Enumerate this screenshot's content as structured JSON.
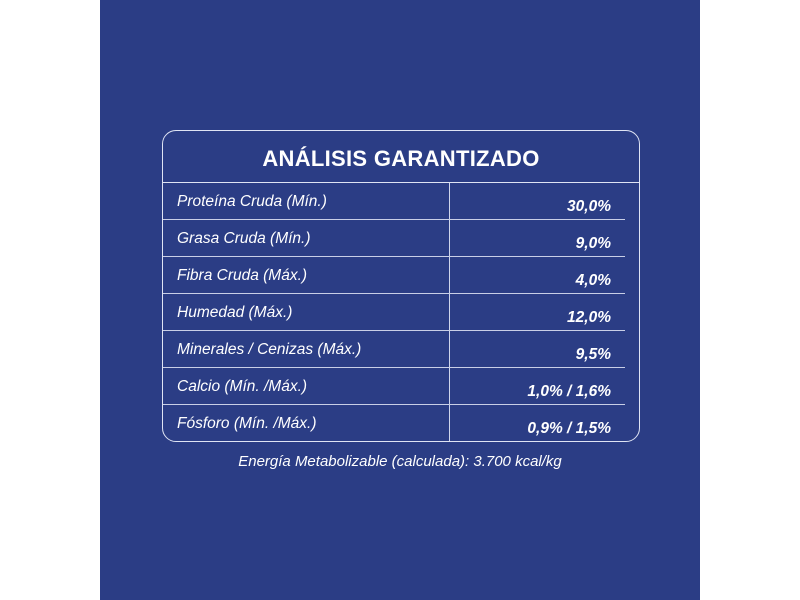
{
  "table": {
    "title": "ANÁLISIS GARANTIZADO",
    "rows": [
      {
        "label": "Proteína Cruda (Mín.)",
        "value": "30,0%"
      },
      {
        "label": "Grasa Cruda (Mín.)",
        "value": "9,0%"
      },
      {
        "label": "Fibra Cruda (Máx.)",
        "value": "4,0%"
      },
      {
        "label": "Humedad (Máx.)",
        "value": "12,0%"
      },
      {
        "label": "Minerales / Cenizas (Máx.)",
        "value": "9,5%"
      },
      {
        "label": "Calcio (Mín. /Máx.)",
        "value": "1,0% / 1,6%"
      },
      {
        "label": "Fósforo (Mín. /Máx.)",
        "value": "0,9% / 1,5%"
      }
    ]
  },
  "footer": {
    "energy": "Energía Metabolizable (calculada): 3.700 kcal/kg"
  },
  "colors": {
    "panel_background": "#2b3d85",
    "text": "#ffffff",
    "lines": "#dfe4f4"
  }
}
